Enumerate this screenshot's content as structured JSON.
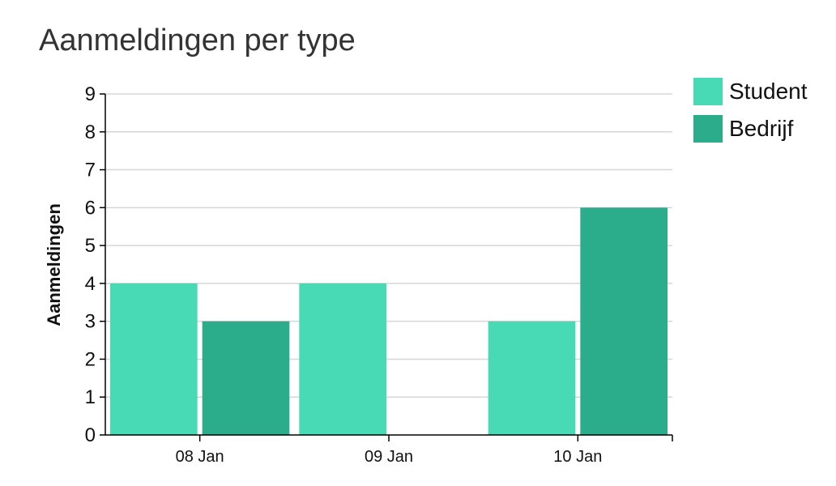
{
  "chart_data": {
    "type": "bar",
    "title": "Aanmeldingen per type",
    "xlabel": "",
    "ylabel": "Aanmeldingen",
    "ylim": [
      0,
      9
    ],
    "yticks": [
      "0",
      "1",
      "2",
      "3",
      "4",
      "5",
      "6",
      "7",
      "8",
      "9"
    ],
    "categories": [
      "08 Jan",
      "09 Jan",
      "10 Jan"
    ],
    "series": [
      {
        "name": "Student",
        "values": [
          4,
          4,
          3
        ],
        "color": "#48dab4"
      },
      {
        "name": "Bedrijf",
        "values": [
          3,
          0,
          6
        ],
        "color": "#2bad8c"
      }
    ],
    "grid": true,
    "legend_position": "top-right"
  }
}
